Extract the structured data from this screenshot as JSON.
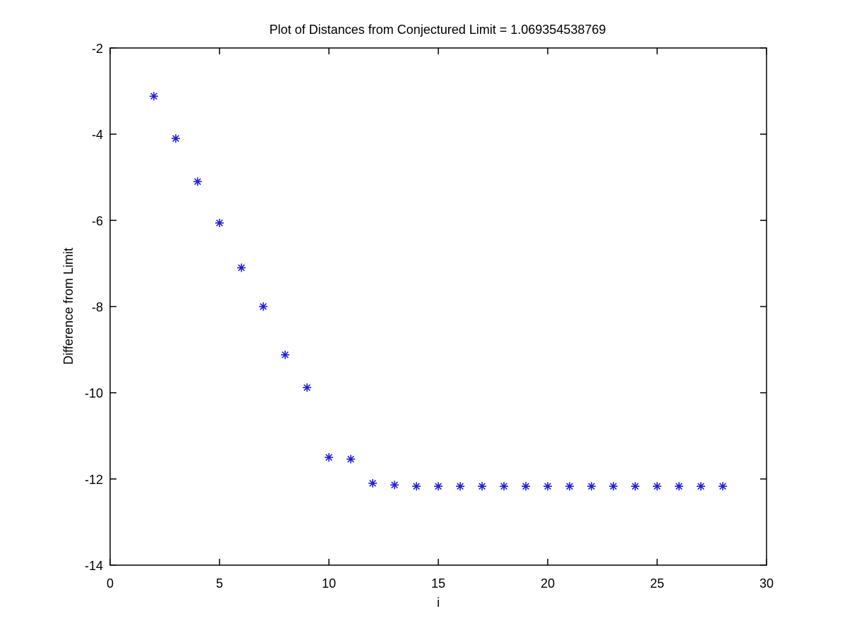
{
  "chart_data": {
    "type": "scatter",
    "title": "Plot of Distances from Conjectured Limit = 1.069354538769",
    "xlabel": "i",
    "ylabel": "Difference from Limit",
    "xlim": [
      0,
      30
    ],
    "ylim": [
      -14,
      -2
    ],
    "x_ticks": [
      0,
      5,
      10,
      15,
      20,
      25,
      30
    ],
    "y_ticks": [
      -14,
      -12,
      -10,
      -8,
      -6,
      -4,
      -2
    ],
    "grid": false,
    "legend": "none",
    "marker": "asterisk",
    "series": [
      {
        "color": "#1f1fd6",
        "x": [
          2,
          3,
          4,
          5,
          6,
          7,
          8,
          9,
          10,
          11,
          12,
          13,
          14,
          15,
          16,
          17,
          18,
          19,
          20,
          21,
          22,
          23,
          24,
          25,
          26,
          27,
          28
        ],
        "y": [
          -3.12,
          -4.1,
          -5.1,
          -6.06,
          -7.1,
          -8.0,
          -9.12,
          -9.88,
          -11.5,
          -11.54,
          -12.1,
          -12.14,
          -12.17,
          -12.17,
          -12.17,
          -12.17,
          -12.17,
          -12.17,
          -12.17,
          -12.17,
          -12.17,
          -12.17,
          -12.17,
          -12.17,
          -12.17,
          -12.17,
          -12.17
        ]
      }
    ]
  }
}
